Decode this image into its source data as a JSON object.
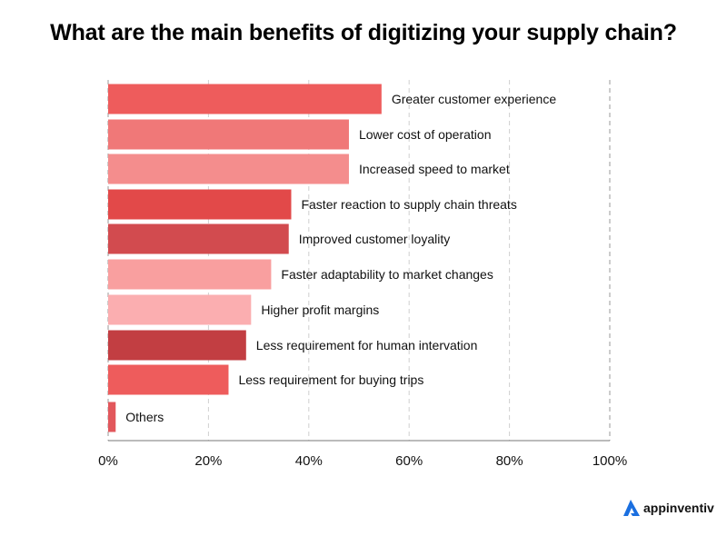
{
  "chart_data": {
    "type": "bar",
    "orientation": "horizontal",
    "title": "What are the main benefits of digitizing your supply chain?",
    "xlabel": "",
    "ylabel": "",
    "xlim": [
      0,
      100
    ],
    "x_ticks": [
      "0%",
      "20%",
      "40%",
      "60%",
      "80%",
      "100%"
    ],
    "grid": true,
    "categories": [
      "Greater customer experience",
      "Lower cost of operation",
      "Increased speed to market",
      "Faster reaction to supply chain threats",
      "Improved customer loyality",
      "Faster adaptability to market changes",
      "Higher profit margins",
      "Less requirement for human intervation",
      "Less requirement for buying trips",
      "Others"
    ],
    "values": [
      54.5,
      48,
      48,
      36.5,
      36,
      32.5,
      28.5,
      27.5,
      24,
      1.5
    ],
    "bar_colors": [
      "#ee5c5c",
      "#f07878",
      "#f48d8d",
      "#e24949",
      "#d24b4f",
      "#f99f9f",
      "#fbaeb0",
      "#c23e42",
      "#ee5c5c",
      "#e2575c"
    ]
  },
  "brand": {
    "name": "appinventiv",
    "icon": "appinventiv-logo-icon",
    "color": "#1a6fe0"
  }
}
